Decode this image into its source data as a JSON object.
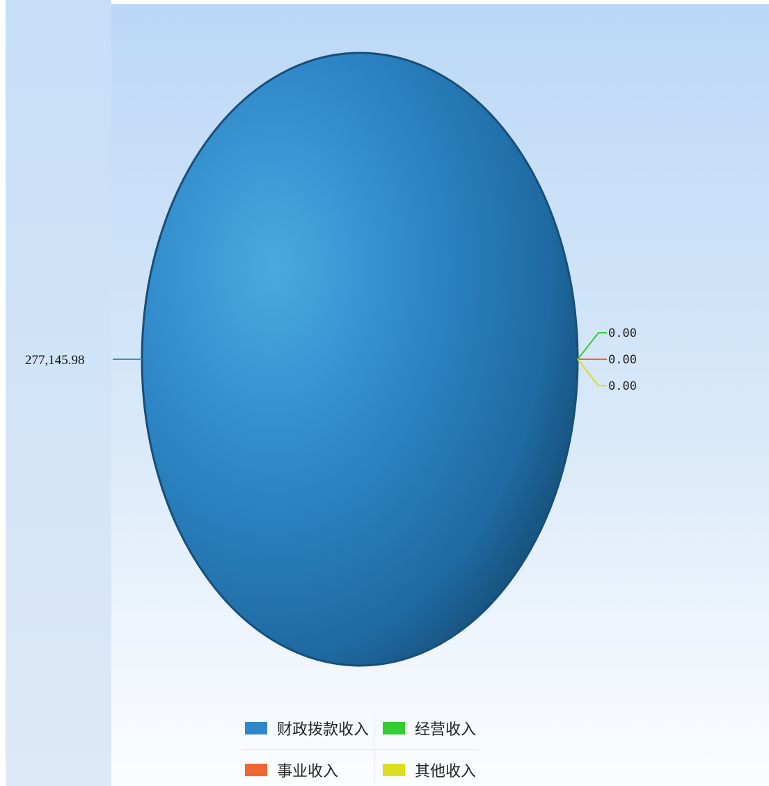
{
  "chart_data": {
    "type": "pie",
    "categories": [
      "财政拨款收入",
      "经营收入",
      "事业收入",
      "其他收入"
    ],
    "values": [
      277145.98,
      0.0,
      0.0,
      0.0
    ],
    "value_labels": [
      "277,145.98",
      "0.00",
      "0.00",
      "0.00"
    ],
    "colors": [
      "#2f87c8",
      "#33cc33",
      "#ee6633",
      "#dddd22"
    ],
    "legend_position": "bottom"
  }
}
